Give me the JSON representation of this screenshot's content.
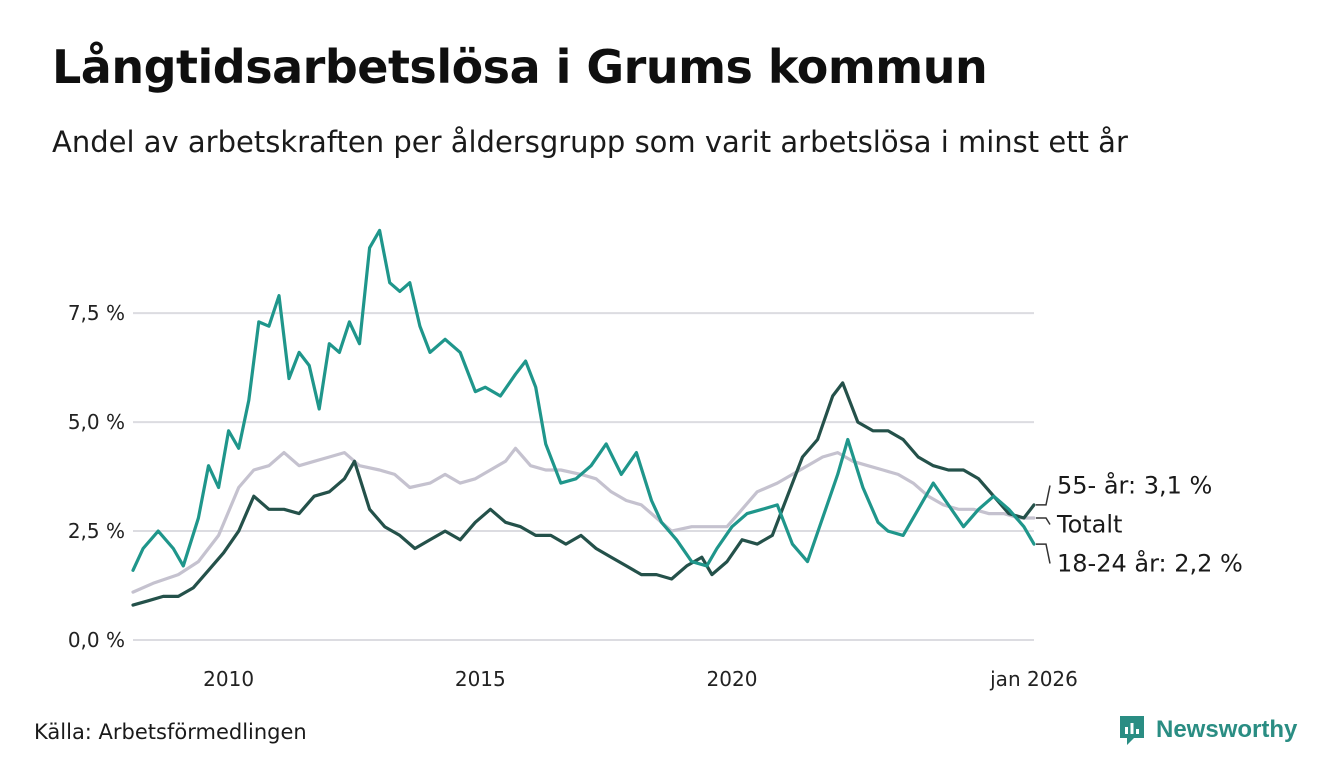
{
  "header": {
    "title": "Långtidsarbetslösa i Grums kommun",
    "subtitle": "Andel av arbetskraften per åldersgrupp som varit arbetslösa i minst ett år"
  },
  "footer": {
    "source": "Källa: Arbetsförmedlingen",
    "brand": "Newsworthy"
  },
  "colors": {
    "youth": "#1f968b",
    "total": "#c5c2cf",
    "senior": "#24514a",
    "grid": "#dcdce1",
    "brand": "#2a8d83"
  },
  "chart_data": {
    "type": "line",
    "title": "Långtidsarbetslösa i Grums kommun",
    "xlabel": "",
    "ylabel": "",
    "xlim": [
      2008.1,
      2026.0
    ],
    "ylim": [
      0,
      9.5
    ],
    "x_ticks": [
      {
        "value": 2010.0,
        "label": "2010"
      },
      {
        "value": 2015.0,
        "label": "2015"
      },
      {
        "value": 2020.0,
        "label": "2020"
      },
      {
        "value": 2026.0,
        "label": "jan 2026"
      }
    ],
    "y_ticks": [
      {
        "value": 0,
        "label": "0,0 %"
      },
      {
        "value": 2.5,
        "label": "2,5 %"
      },
      {
        "value": 5.0,
        "label": "5,0 %"
      },
      {
        "value": 7.5,
        "label": "7,5 %"
      }
    ],
    "grid": true,
    "series": [
      {
        "name": "Totalt",
        "end_label": "Totalt",
        "color": "#c5c2cf",
        "points": [
          [
            2008.1,
            1.1
          ],
          [
            2008.5,
            1.3
          ],
          [
            2009.0,
            1.5
          ],
          [
            2009.4,
            1.8
          ],
          [
            2009.8,
            2.4
          ],
          [
            2010.2,
            3.5
          ],
          [
            2010.5,
            3.9
          ],
          [
            2010.8,
            4.0
          ],
          [
            2011.1,
            4.3
          ],
          [
            2011.4,
            4.0
          ],
          [
            2011.7,
            4.1
          ],
          [
            2012.0,
            4.2
          ],
          [
            2012.3,
            4.3
          ],
          [
            2012.6,
            4.0
          ],
          [
            2013.0,
            3.9
          ],
          [
            2013.3,
            3.8
          ],
          [
            2013.6,
            3.5
          ],
          [
            2014.0,
            3.6
          ],
          [
            2014.3,
            3.8
          ],
          [
            2014.6,
            3.6
          ],
          [
            2014.9,
            3.7
          ],
          [
            2015.2,
            3.9
          ],
          [
            2015.5,
            4.1
          ],
          [
            2015.7,
            4.4
          ],
          [
            2016.0,
            4.0
          ],
          [
            2016.3,
            3.9
          ],
          [
            2016.6,
            3.9
          ],
          [
            2017.0,
            3.8
          ],
          [
            2017.3,
            3.7
          ],
          [
            2017.6,
            3.4
          ],
          [
            2017.9,
            3.2
          ],
          [
            2018.2,
            3.1
          ],
          [
            2018.5,
            2.8
          ],
          [
            2018.8,
            2.5
          ],
          [
            2019.2,
            2.6
          ],
          [
            2019.5,
            2.6
          ],
          [
            2019.9,
            2.6
          ],
          [
            2020.2,
            3.0
          ],
          [
            2020.5,
            3.4
          ],
          [
            2020.9,
            3.6
          ],
          [
            2021.2,
            3.8
          ],
          [
            2021.5,
            4.0
          ],
          [
            2021.8,
            4.2
          ],
          [
            2022.1,
            4.3
          ],
          [
            2022.4,
            4.1
          ],
          [
            2022.7,
            4.0
          ],
          [
            2023.0,
            3.9
          ],
          [
            2023.3,
            3.8
          ],
          [
            2023.6,
            3.6
          ],
          [
            2023.9,
            3.3
          ],
          [
            2024.2,
            3.1
          ],
          [
            2024.5,
            3.0
          ],
          [
            2024.8,
            3.0
          ],
          [
            2025.1,
            2.9
          ],
          [
            2025.4,
            2.9
          ],
          [
            2025.7,
            2.8
          ],
          [
            2026.0,
            2.8
          ]
        ]
      },
      {
        "name": "55- år",
        "end_label": "55- år: 3,1 %",
        "color": "#24514a",
        "points": [
          [
            2008.1,
            0.8
          ],
          [
            2008.4,
            0.9
          ],
          [
            2008.7,
            1.0
          ],
          [
            2009.0,
            1.0
          ],
          [
            2009.3,
            1.2
          ],
          [
            2009.6,
            1.6
          ],
          [
            2009.9,
            2.0
          ],
          [
            2010.2,
            2.5
          ],
          [
            2010.5,
            3.3
          ],
          [
            2010.8,
            3.0
          ],
          [
            2011.1,
            3.0
          ],
          [
            2011.4,
            2.9
          ],
          [
            2011.7,
            3.3
          ],
          [
            2012.0,
            3.4
          ],
          [
            2012.3,
            3.7
          ],
          [
            2012.5,
            4.1
          ],
          [
            2012.8,
            3.0
          ],
          [
            2013.1,
            2.6
          ],
          [
            2013.4,
            2.4
          ],
          [
            2013.7,
            2.1
          ],
          [
            2014.0,
            2.3
          ],
          [
            2014.3,
            2.5
          ],
          [
            2014.6,
            2.3
          ],
          [
            2014.9,
            2.7
          ],
          [
            2015.2,
            3.0
          ],
          [
            2015.5,
            2.7
          ],
          [
            2015.8,
            2.6
          ],
          [
            2016.1,
            2.4
          ],
          [
            2016.4,
            2.4
          ],
          [
            2016.7,
            2.2
          ],
          [
            2017.0,
            2.4
          ],
          [
            2017.3,
            2.1
          ],
          [
            2017.6,
            1.9
          ],
          [
            2017.9,
            1.7
          ],
          [
            2018.2,
            1.5
          ],
          [
            2018.5,
            1.5
          ],
          [
            2018.8,
            1.4
          ],
          [
            2019.1,
            1.7
          ],
          [
            2019.4,
            1.9
          ],
          [
            2019.6,
            1.5
          ],
          [
            2019.9,
            1.8
          ],
          [
            2020.2,
            2.3
          ],
          [
            2020.5,
            2.2
          ],
          [
            2020.8,
            2.4
          ],
          [
            2021.1,
            3.3
          ],
          [
            2021.4,
            4.2
          ],
          [
            2021.7,
            4.6
          ],
          [
            2022.0,
            5.6
          ],
          [
            2022.2,
            5.9
          ],
          [
            2022.5,
            5.0
          ],
          [
            2022.8,
            4.8
          ],
          [
            2023.1,
            4.8
          ],
          [
            2023.4,
            4.6
          ],
          [
            2023.7,
            4.2
          ],
          [
            2024.0,
            4.0
          ],
          [
            2024.3,
            3.9
          ],
          [
            2024.6,
            3.9
          ],
          [
            2024.9,
            3.7
          ],
          [
            2025.2,
            3.3
          ],
          [
            2025.5,
            2.9
          ],
          [
            2025.8,
            2.8
          ],
          [
            2026.0,
            3.1
          ]
        ]
      },
      {
        "name": "18-24 år",
        "end_label": "18-24 år: 2,2 %",
        "color": "#1f968b",
        "points": [
          [
            2008.1,
            1.6
          ],
          [
            2008.3,
            2.1
          ],
          [
            2008.6,
            2.5
          ],
          [
            2008.9,
            2.1
          ],
          [
            2009.1,
            1.7
          ],
          [
            2009.4,
            2.8
          ],
          [
            2009.6,
            4.0
          ],
          [
            2009.8,
            3.5
          ],
          [
            2010.0,
            4.8
          ],
          [
            2010.2,
            4.4
          ],
          [
            2010.4,
            5.5
          ],
          [
            2010.6,
            7.3
          ],
          [
            2010.8,
            7.2
          ],
          [
            2011.0,
            7.9
          ],
          [
            2011.2,
            6.0
          ],
          [
            2011.4,
            6.6
          ],
          [
            2011.6,
            6.3
          ],
          [
            2011.8,
            5.3
          ],
          [
            2012.0,
            6.8
          ],
          [
            2012.2,
            6.6
          ],
          [
            2012.4,
            7.3
          ],
          [
            2012.6,
            6.8
          ],
          [
            2012.8,
            9.0
          ],
          [
            2013.0,
            9.4
          ],
          [
            2013.2,
            8.2
          ],
          [
            2013.4,
            8.0
          ],
          [
            2013.6,
            8.2
          ],
          [
            2013.8,
            7.2
          ],
          [
            2014.0,
            6.6
          ],
          [
            2014.3,
            6.9
          ],
          [
            2014.6,
            6.6
          ],
          [
            2014.9,
            5.7
          ],
          [
            2015.1,
            5.8
          ],
          [
            2015.4,
            5.6
          ],
          [
            2015.7,
            6.1
          ],
          [
            2015.9,
            6.4
          ],
          [
            2016.1,
            5.8
          ],
          [
            2016.3,
            4.5
          ],
          [
            2016.6,
            3.6
          ],
          [
            2016.9,
            3.7
          ],
          [
            2017.2,
            4.0
          ],
          [
            2017.5,
            4.5
          ],
          [
            2017.8,
            3.8
          ],
          [
            2018.1,
            4.3
          ],
          [
            2018.4,
            3.2
          ],
          [
            2018.6,
            2.7
          ],
          [
            2018.9,
            2.3
          ],
          [
            2019.2,
            1.8
          ],
          [
            2019.5,
            1.7
          ],
          [
            2019.7,
            2.1
          ],
          [
            2020.0,
            2.6
          ],
          [
            2020.3,
            2.9
          ],
          [
            2020.6,
            3.0
          ],
          [
            2020.9,
            3.1
          ],
          [
            2021.2,
            2.2
          ],
          [
            2021.5,
            1.8
          ],
          [
            2021.8,
            2.8
          ],
          [
            2022.1,
            3.8
          ],
          [
            2022.3,
            4.6
          ],
          [
            2022.6,
            3.5
          ],
          [
            2022.9,
            2.7
          ],
          [
            2023.1,
            2.5
          ],
          [
            2023.4,
            2.4
          ],
          [
            2023.7,
            3.0
          ],
          [
            2024.0,
            3.6
          ],
          [
            2024.3,
            3.1
          ],
          [
            2024.6,
            2.6
          ],
          [
            2024.9,
            3.0
          ],
          [
            2025.2,
            3.3
          ],
          [
            2025.5,
            3.0
          ],
          [
            2025.8,
            2.6
          ],
          [
            2026.0,
            2.2
          ]
        ]
      }
    ]
  }
}
